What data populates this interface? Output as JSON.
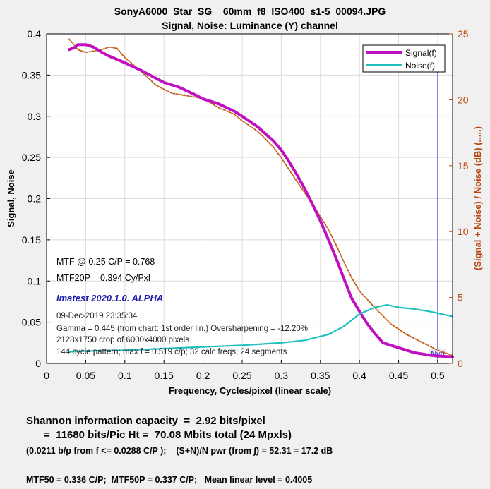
{
  "chart_data": {
    "type": "line",
    "title": "SonyA6000_Star_SG__60mm_f8_ISO400_s1-5_00094.JPG",
    "subtitle": "Signal, Noise:  Luminance (Y) channel",
    "xlabel": "Frequency, Cycles/pixel (linear scale)",
    "ylabel": "Signal, Noise",
    "y2label": "(Signal + Noise) / Noise (dB)  (.....)",
    "xlim": [
      0,
      0.519
    ],
    "ylim": [
      0,
      0.4
    ],
    "y2lim": [
      0,
      25
    ],
    "x_ticks": [
      "0",
      "0.05",
      "0.1",
      "0.15",
      "0.2",
      "0.25",
      "0.3",
      "0.35",
      "0.4",
      "0.45",
      "0.5"
    ],
    "y_ticks": [
      "0",
      "0.05",
      "0.1",
      "0.15",
      "0.2",
      "0.25",
      "0.3",
      "0.35",
      "0.4"
    ],
    "y2_ticks": [
      "0",
      "5",
      "10",
      "15",
      "20",
      "25"
    ],
    "grid": true,
    "legend_position": "top-right",
    "colors": {
      "signal": "#c010c0",
      "noise": "#20c0c0",
      "snr": "#c05a10",
      "nyquist": "#6a6ad0"
    },
    "series": [
      {
        "name": "Signal(f)",
        "x": [
          0.029,
          0.035,
          0.04,
          0.05,
          0.06,
          0.07,
          0.08,
          0.1,
          0.12,
          0.14,
          0.15,
          0.17,
          0.19,
          0.2,
          0.22,
          0.24,
          0.25,
          0.27,
          0.29,
          0.3,
          0.31,
          0.32,
          0.33,
          0.34,
          0.35,
          0.36,
          0.37,
          0.38,
          0.39,
          0.4,
          0.41,
          0.42,
          0.43,
          0.45,
          0.47,
          0.49,
          0.5,
          0.519
        ],
        "values": [
          0.381,
          0.383,
          0.387,
          0.387,
          0.384,
          0.378,
          0.373,
          0.365,
          0.356,
          0.346,
          0.341,
          0.335,
          0.326,
          0.321,
          0.315,
          0.306,
          0.3,
          0.287,
          0.27,
          0.259,
          0.245,
          0.229,
          0.212,
          0.193,
          0.173,
          0.151,
          0.128,
          0.103,
          0.079,
          0.063,
          0.048,
          0.036,
          0.025,
          0.019,
          0.013,
          0.01,
          0.009,
          0.008
        ]
      },
      {
        "name": "Noise(f)",
        "x": [
          0.029,
          0.05,
          0.1,
          0.15,
          0.2,
          0.25,
          0.3,
          0.33,
          0.36,
          0.38,
          0.4,
          0.42,
          0.435,
          0.45,
          0.47,
          0.49,
          0.5,
          0.519
        ],
        "values": [
          0.014,
          0.015,
          0.016,
          0.018,
          0.02,
          0.022,
          0.025,
          0.028,
          0.035,
          0.045,
          0.06,
          0.068,
          0.071,
          0.068,
          0.066,
          0.063,
          0.061,
          0.057
        ]
      },
      {
        "name": "(Signal + Noise) / Noise (dB)",
        "axis": "right",
        "x": [
          0.029,
          0.04,
          0.05,
          0.06,
          0.07,
          0.08,
          0.09,
          0.1,
          0.12,
          0.14,
          0.16,
          0.18,
          0.2,
          0.22,
          0.24,
          0.25,
          0.27,
          0.29,
          0.3,
          0.32,
          0.34,
          0.36,
          0.37,
          0.38,
          0.39,
          0.4,
          0.42,
          0.44,
          0.46,
          0.48,
          0.5,
          0.519
        ],
        "values": [
          24.6,
          23.8,
          23.6,
          23.7,
          23.8,
          24.0,
          23.9,
          23.2,
          22.2,
          21.1,
          20.5,
          20.3,
          20.1,
          19.4,
          18.9,
          18.4,
          17.6,
          16.4,
          15.6,
          13.8,
          12.1,
          10.2,
          9.0,
          7.7,
          6.5,
          5.5,
          4.2,
          3.0,
          2.2,
          1.6,
          1.0,
          0.6
        ]
      }
    ],
    "nyquist": {
      "x": 0.5,
      "label": "Nyq"
    }
  },
  "annotations": {
    "mtf": "MTF @ 0.25 C/P = 0.768",
    "mtf20p": "MTF20P = 0.394 Cy/Pxl",
    "version": "Imatest 2020.1.0. ALPHA",
    "date": "09-Dec-2019 23:35:34",
    "gamma": "Gamma = 0.445 (from chart: 1st order lin.)  Oversharpening = -12.20%",
    "crop": "2128x1750 crop of 6000x4000 pixels",
    "pattern": "144 cycle pattern;  max f = 0.519 c/p;  32 calc freqs;  24 segments"
  },
  "footer": {
    "line1": "Shannon information capacity  =  2.92 bits/pixel",
    "line2": "      =  11680 bits/Pic Ht =  70.08 Mbits total (24 Mpxls)",
    "line3": "(0.0211 b/p from f <= 0.0288 C/P );    (S+N)/N pwr (from ∫) = 52.31 = 17.2 dB",
    "line4": "MTF50 = 0.336 C/P;  MTF50P = 0.337 C/P;   Mean linear level = 0.4005"
  }
}
